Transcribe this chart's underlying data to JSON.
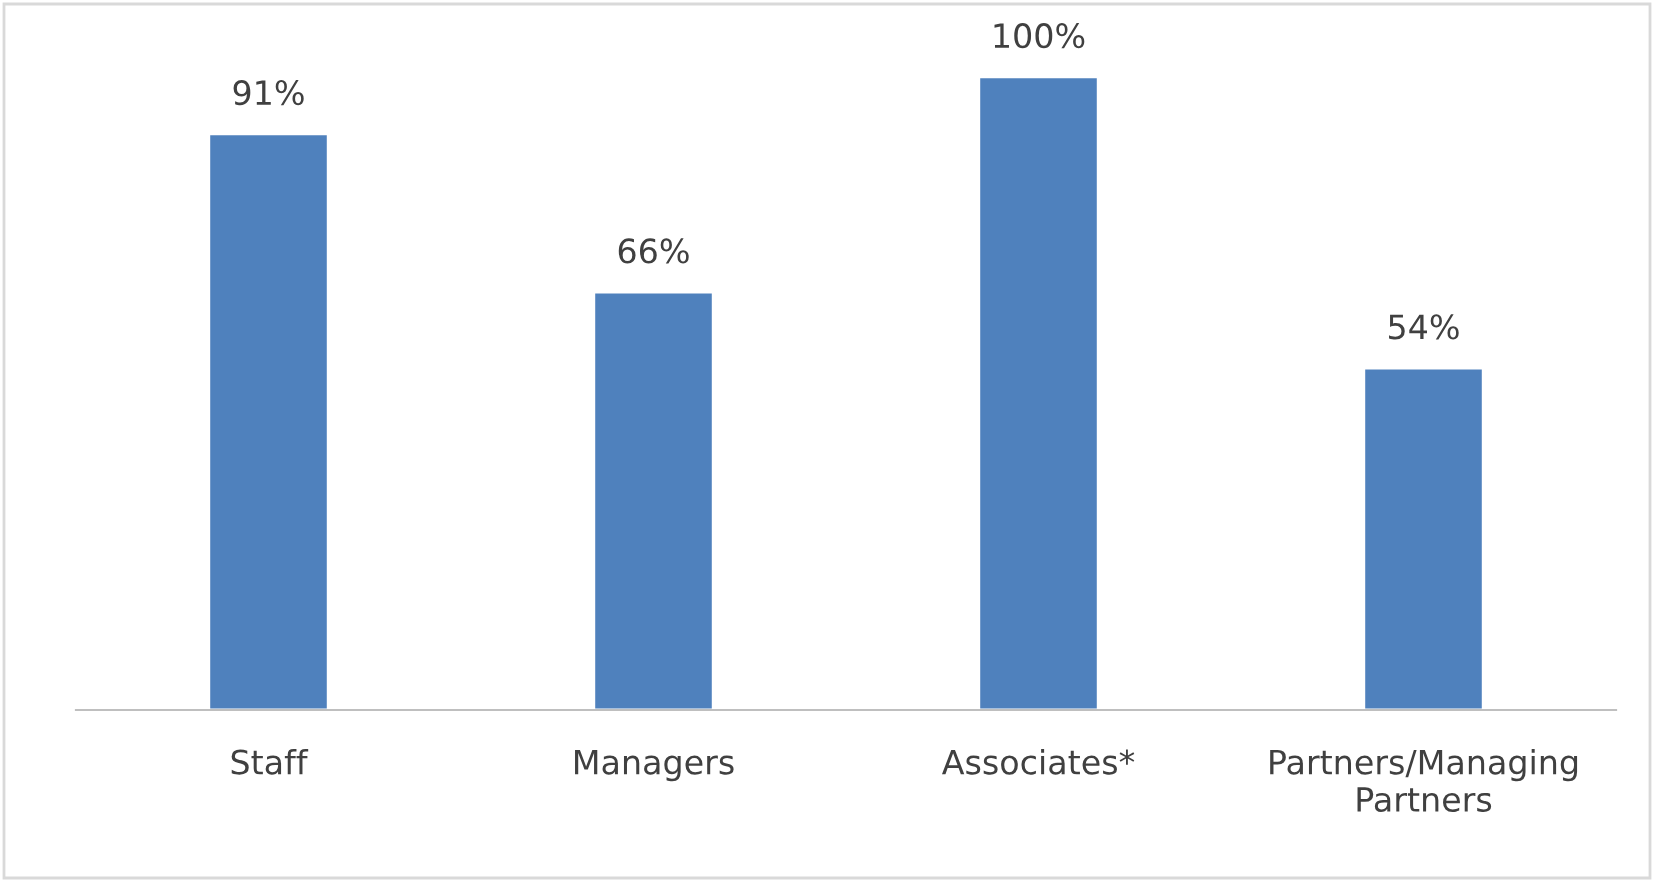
{
  "chart_data": {
    "type": "bar",
    "categories": [
      "Staff",
      "Managers",
      "Associates*",
      "Partners/Managing Partners"
    ],
    "values": [
      91,
      66,
      100,
      54
    ],
    "color": "#4f81bd",
    "data_labels": true,
    "value_labels": [
      "91%",
      "66%",
      "100%",
      "54%"
    ],
    "grid": false,
    "legend": false
  }
}
